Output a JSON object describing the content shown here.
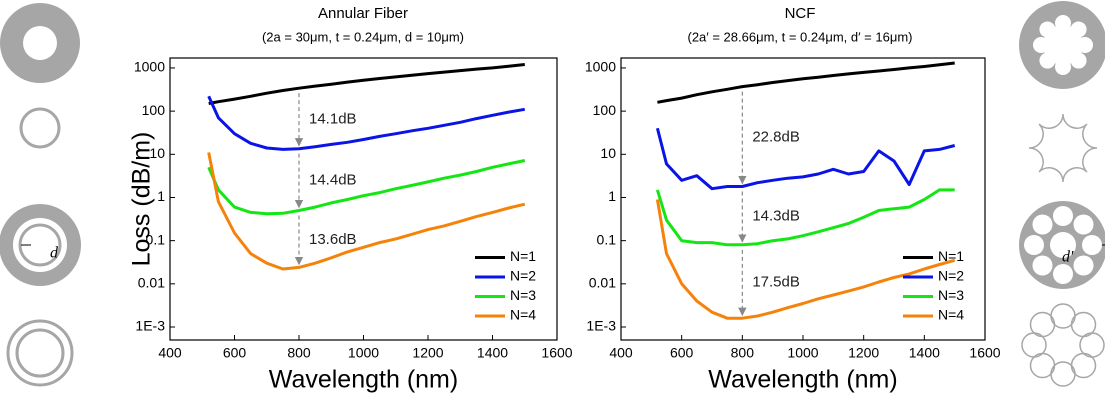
{
  "chart_data": [
    {
      "type": "line",
      "title": "Annular Fiber",
      "subtitle": "(2a = 30μm, t = 0.24μm, d = 10μm)",
      "x_label": "Wavelength (nm)",
      "y_label": "Loss (dB/m)",
      "log_y": true,
      "legend": "lower right",
      "x": [
        520,
        550,
        600,
        650,
        700,
        750,
        800,
        850,
        900,
        950,
        1000,
        1050,
        1100,
        1150,
        1200,
        1250,
        1300,
        1350,
        1400,
        1450,
        1500
      ],
      "series": [
        {
          "name": "N=1",
          "color": "#000000",
          "values": [
            150,
            165,
            190,
            220,
            260,
            300,
            340,
            380,
            420,
            470,
            520,
            570,
            620,
            680,
            740,
            800,
            870,
            940,
            1000,
            1100,
            1200
          ]
        },
        {
          "name": "N=2",
          "color": "#0a14e6",
          "values": [
            220,
            70,
            30,
            18,
            14,
            13,
            13.5,
            15,
            17,
            19,
            22,
            26,
            30,
            35,
            40,
            47,
            55,
            67,
            80,
            95,
            110
          ]
        },
        {
          "name": "N=3",
          "color": "#14e614",
          "values": [
            5,
            1.5,
            0.6,
            0.45,
            0.42,
            0.43,
            0.5,
            0.6,
            0.75,
            0.9,
            1.1,
            1.3,
            1.6,
            1.9,
            2.3,
            2.8,
            3.3,
            4,
            5,
            6,
            7.2
          ]
        },
        {
          "name": "N=4",
          "color": "#f5820a",
          "values": [
            11,
            0.8,
            0.15,
            0.05,
            0.03,
            0.022,
            0.024,
            0.03,
            0.04,
            0.055,
            0.07,
            0.09,
            0.11,
            0.14,
            0.18,
            0.22,
            0.28,
            0.36,
            0.45,
            0.57,
            0.7
          ]
        }
      ],
      "annotation_x": 800,
      "annotations": [
        "14.1dB",
        "14.4dB",
        "13.6dB"
      ],
      "xlim": [
        400,
        1600
      ],
      "xticks": [
        400,
        600,
        800,
        1000,
        1200,
        1400,
        1600
      ],
      "ylim": [
        0.0005,
        1700
      ],
      "yticks": [
        {
          "value": 0.001,
          "label": "1E-3"
        },
        0.01,
        0.1,
        1,
        10,
        100,
        1000
      ]
    },
    {
      "type": "line",
      "title": "NCF",
      "subtitle": "(2a′ = 28.66μm, t = 0.24μm, d′ = 16μm)",
      "x_label": "Wavelength (nm)",
      "log_y": true,
      "legend": "lower right",
      "x": [
        520,
        550,
        600,
        650,
        700,
        750,
        800,
        850,
        900,
        950,
        1000,
        1050,
        1100,
        1150,
        1200,
        1250,
        1300,
        1350,
        1400,
        1450,
        1500
      ],
      "series": [
        {
          "name": "N=1",
          "color": "#000000",
          "values": [
            160,
            175,
            200,
            240,
            280,
            320,
            370,
            410,
            460,
            510,
            560,
            610,
            670,
            730,
            790,
            850,
            920,
            1000,
            1080,
            1180,
            1300
          ]
        },
        {
          "name": "N=2",
          "color": "#0a14e6",
          "values": [
            40,
            6,
            2.5,
            3.2,
            1.6,
            1.8,
            1.8,
            2.2,
            2.5,
            2.8,
            3,
            3.5,
            4.5,
            3.5,
            4,
            12,
            7,
            2,
            12,
            13,
            16
          ]
        },
        {
          "name": "N=3",
          "color": "#14e614",
          "values": [
            1.5,
            0.3,
            0.1,
            0.09,
            0.09,
            0.08,
            0.08,
            0.085,
            0.1,
            0.11,
            0.13,
            0.16,
            0.2,
            0.25,
            0.35,
            0.5,
            0.55,
            0.6,
            0.9,
            1.5,
            1.5
          ]
        },
        {
          "name": "N=4",
          "color": "#f5820a",
          "values": [
            0.9,
            0.05,
            0.01,
            0.004,
            0.0022,
            0.0016,
            0.0016,
            0.0018,
            0.0022,
            0.0028,
            0.0035,
            0.0045,
            0.0055,
            0.0068,
            0.0085,
            0.011,
            0.014,
            0.017,
            0.022,
            0.028,
            0.035
          ]
        }
      ],
      "annotation_x": 800,
      "annotations": [
        "22.8dB",
        "14.3dB",
        "17.5dB"
      ],
      "xlim": [
        400,
        1600
      ],
      "xticks": [
        400,
        600,
        800,
        1000,
        1200,
        1400,
        1600
      ],
      "ylim": [
        0.0005,
        1700
      ],
      "yticks": [
        {
          "value": 0.001,
          "label": "1E-3"
        },
        0.01,
        0.1,
        1,
        10,
        100,
        1000
      ]
    }
  ],
  "diagrams": {
    "left_label": "d",
    "right_label": "d′"
  }
}
